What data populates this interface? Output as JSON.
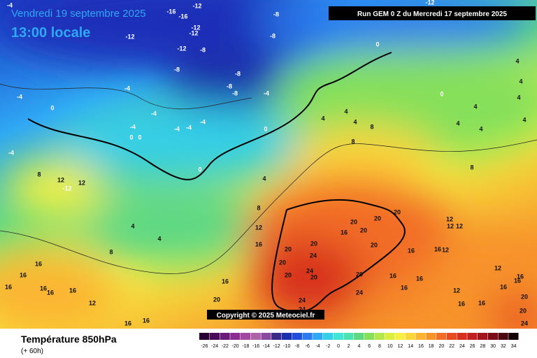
{
  "header": {
    "date": "Vendredi 19 septembre 2025",
    "time": "13:00 locale",
    "run": "Run GEM 0 Z du Mercredi 17 septembre 2025"
  },
  "copyright": "Copyright © 2025 Meteociel.fr",
  "footer": {
    "title": "Température 850hPa",
    "lead": "(+ 60h)"
  },
  "colorbar": {
    "ticks": [
      -26,
      -24,
      -22,
      -20,
      -18,
      -16,
      -14,
      -12,
      -10,
      -8,
      -6,
      -4,
      -2,
      0,
      2,
      4,
      6,
      8,
      10,
      12,
      14,
      16,
      18,
      20,
      22,
      24,
      26,
      28,
      30,
      32,
      34
    ],
    "colors": [
      "#2a0033",
      "#4b0a5a",
      "#6a1b7a",
      "#8c2c92",
      "#a3489f",
      "#b062a8",
      "#8a4a9f",
      "#3a2a8a",
      "#1a2fb0",
      "#1f4fd8",
      "#2c7bf0",
      "#2fa8f5",
      "#36cfe8",
      "#3fe6d8",
      "#4de3b0",
      "#5fd884",
      "#86e05a",
      "#b4e84a",
      "#dcef3e",
      "#f7f040",
      "#fcd63a",
      "#fbb531",
      "#f7932b",
      "#f26d25",
      "#e84b21",
      "#d8301e",
      "#c0201e",
      "#a3141c",
      "#7d0c18",
      "#4e0610",
      "#140002"
    ]
  },
  "contour_labels": [
    -4,
    -16,
    -16,
    -12,
    -8,
    -12,
    -12,
    -12,
    -12,
    -8,
    -8,
    -8,
    0,
    -12,
    -8,
    -8,
    -8,
    -4,
    -4,
    -4,
    0,
    -4,
    -4,
    0,
    0,
    -4,
    -4,
    -4,
    0,
    0,
    -4,
    8,
    12,
    -12,
    12,
    4,
    4,
    4,
    8,
    8,
    12,
    16,
    16,
    16,
    16,
    16,
    16,
    16,
    12,
    16,
    16,
    16,
    20,
    20,
    20,
    20,
    24,
    20,
    24,
    20,
    24,
    24,
    16,
    20,
    20,
    20,
    20,
    20,
    20,
    24,
    16,
    16,
    16,
    16,
    12,
    12,
    12,
    12,
    12,
    16,
    16,
    12,
    16,
    16,
    16,
    20,
    24,
    4,
    4,
    8,
    4,
    8,
    0,
    4,
    4,
    4,
    4,
    4,
    4,
    4,
    8,
    16,
    20
  ]
}
